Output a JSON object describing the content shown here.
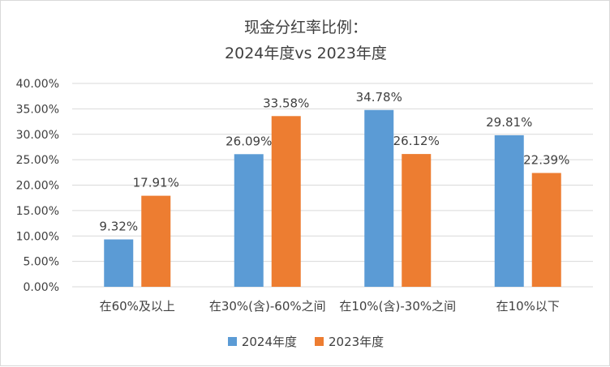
{
  "colors": {
    "series_2024": "#5b9bd5",
    "series_2023": "#ed7d31",
    "gridline": "#d9d9d9",
    "text": "#404040"
  },
  "chart_data": {
    "type": "bar",
    "title_line1": "现金分红率比例：",
    "title_line2": "2024年度vs 2023年度",
    "categories": [
      "在60%及以上",
      "在30%(含)-60%之间",
      "在10%(含)-30%之间",
      "在10%以下"
    ],
    "series": [
      {
        "name": "2024年度",
        "values": [
          9.32,
          26.09,
          34.78,
          29.81
        ],
        "labels": [
          "9.32%",
          "26.09%",
          "34.78%",
          "29.81%"
        ]
      },
      {
        "name": "2023年度",
        "values": [
          17.91,
          33.58,
          26.12,
          22.39
        ],
        "labels": [
          "17.91%",
          "33.58%",
          "26.12%",
          "22.39%"
        ]
      }
    ],
    "ylim": [
      0,
      40
    ],
    "yticks": [
      "0.00%",
      "5.00%",
      "10.00%",
      "15.00%",
      "20.00%",
      "25.00%",
      "30.00%",
      "35.00%",
      "40.00%"
    ],
    "grid": true,
    "legend_position": "bottom"
  }
}
